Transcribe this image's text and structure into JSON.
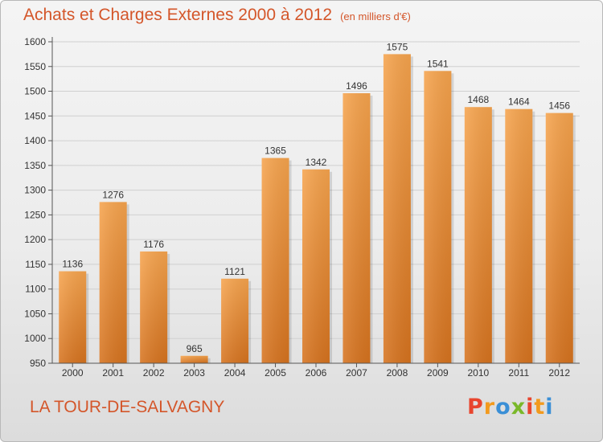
{
  "header": {
    "title": "Achats et Charges Externes 2000 à 2012",
    "subtitle": "(en milliers d'€)"
  },
  "footer": {
    "city": "LA TOUR-DE-SALVAGNY",
    "logo_letters": [
      "P",
      "r",
      "o",
      "x",
      "i",
      "t",
      "i"
    ],
    "logo_colors": [
      "#e8452e",
      "#f29a1e",
      "#3a8fd6",
      "#7ab829",
      "#e8452e",
      "#f29a1e",
      "#3a8fd6"
    ]
  },
  "colors": {
    "bar_light": "#f6a44e",
    "bar_dark": "#d6731f",
    "grid": "#d0d0d0",
    "axis": "#555555",
    "accent": "#d4562a"
  },
  "chart_data": {
    "type": "bar",
    "categories": [
      "2000",
      "2001",
      "2002",
      "2003",
      "2004",
      "2005",
      "2006",
      "2007",
      "2008",
      "2009",
      "2010",
      "2011",
      "2012"
    ],
    "values": [
      1136,
      1276,
      1176,
      965,
      1121,
      1365,
      1342,
      1496,
      1575,
      1541,
      1468,
      1464,
      1456
    ],
    "data_labels": [
      "1136",
      "1276",
      "1176",
      "965",
      "1121",
      "1365",
      "1342",
      "1496",
      "1575",
      "1541",
      "1468",
      "1464",
      "1456"
    ],
    "title": "Achats et Charges Externes 2000 à 2012",
    "subtitle": "(en milliers d'€)",
    "xlabel": "",
    "ylabel": "",
    "ylim": [
      950,
      1600
    ],
    "yticks": [
      950,
      1000,
      1050,
      1100,
      1150,
      1200,
      1250,
      1300,
      1350,
      1400,
      1450,
      1500,
      1550,
      1600
    ],
    "grid": true,
    "legend": "none"
  }
}
